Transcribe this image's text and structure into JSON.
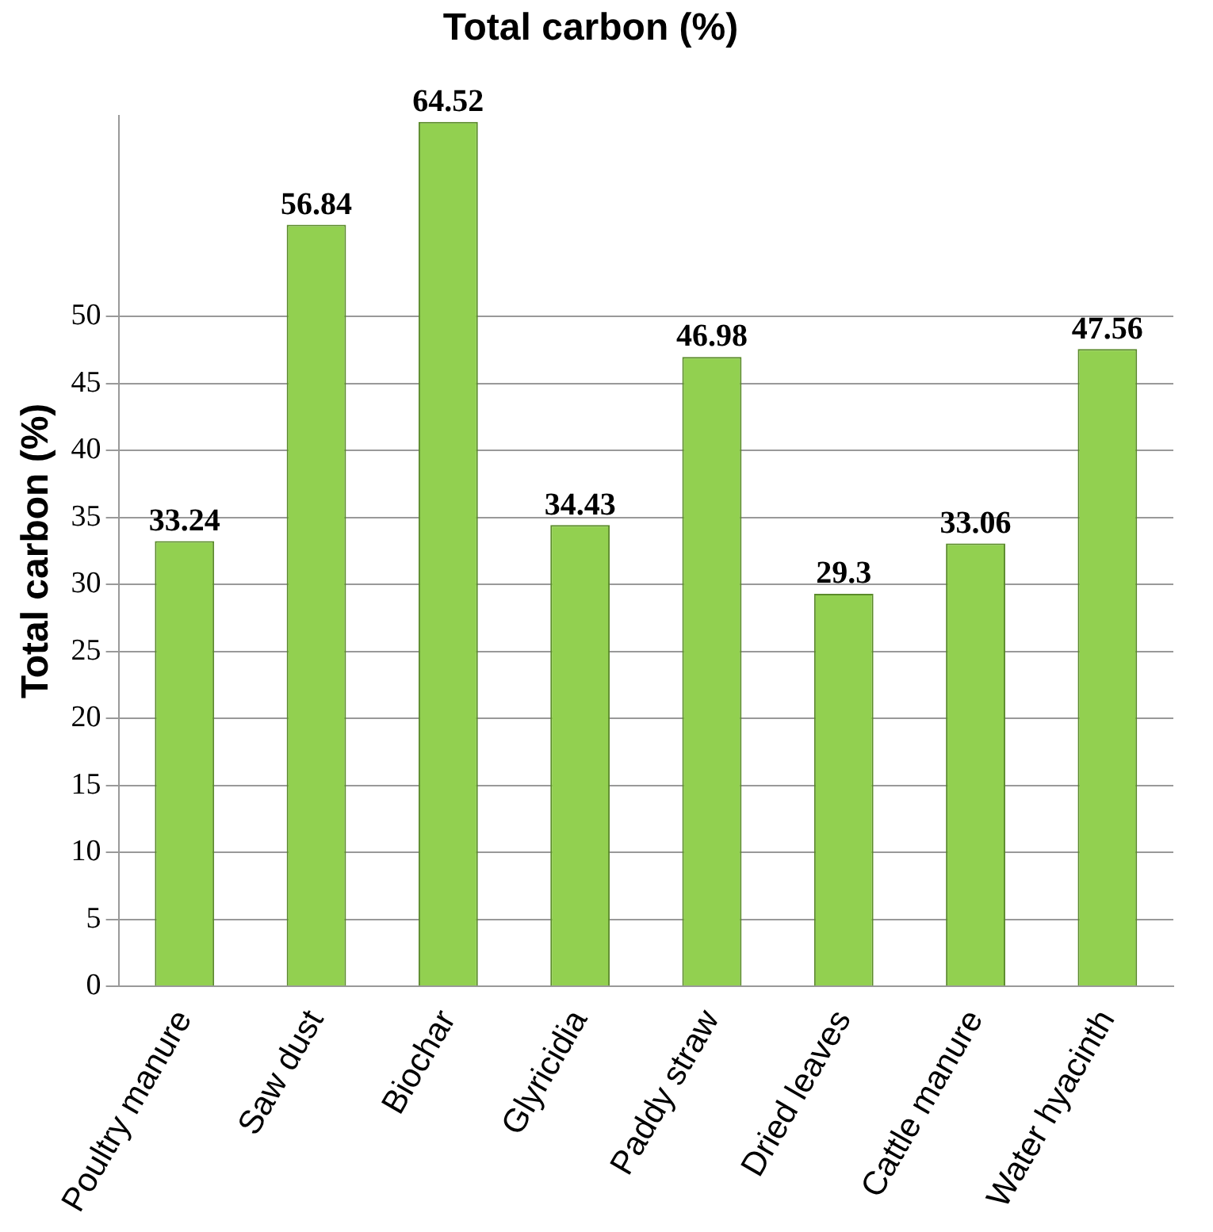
{
  "chart_data": {
    "type": "bar",
    "title": "Total carbon (%)",
    "ylabel": "Total carbon (%)",
    "categories": [
      "Poultry manure",
      "Saw dust",
      "Biochar",
      "Glyricidia",
      "Paddy straw",
      "Dried leaves",
      "Cattle manure",
      "Water hyacinth"
    ],
    "values": [
      33.24,
      56.84,
      64.52,
      34.43,
      46.98,
      29.3,
      33.06,
      47.56
    ],
    "color": "#92d050",
    "ylim": [
      0,
      65
    ],
    "yticks": [
      0,
      5,
      10,
      15,
      20,
      25,
      30,
      35,
      40,
      45,
      50
    ],
    "grid": "y",
    "data_labels": true
  }
}
